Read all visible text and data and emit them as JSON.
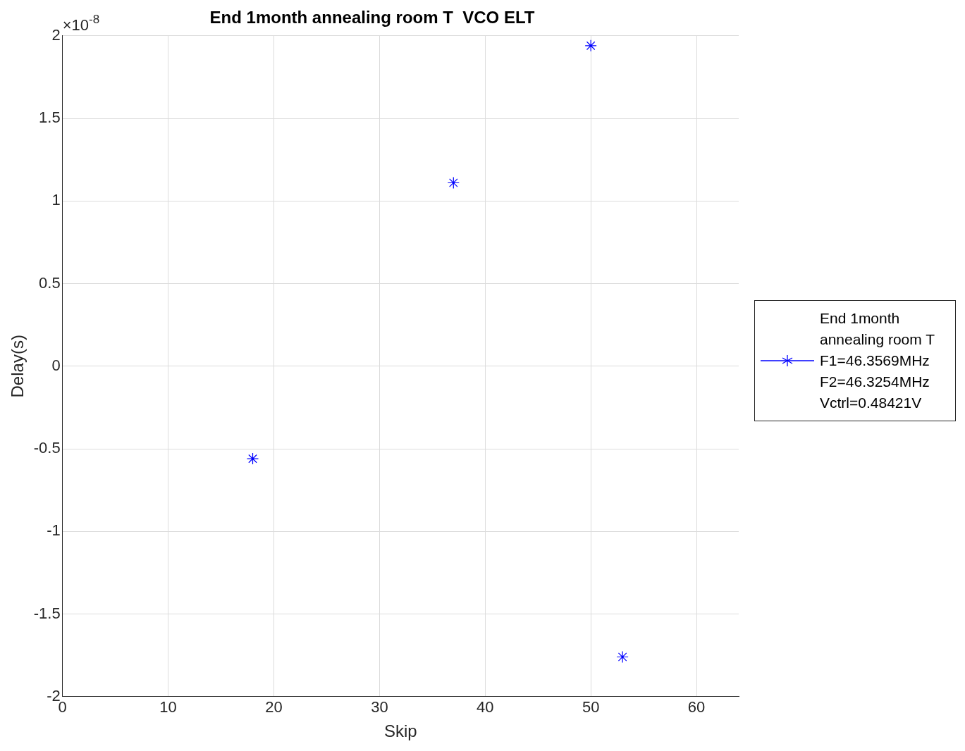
{
  "chart_data": {
    "type": "line",
    "title": "End 1month annealing room T  VCO ELT",
    "xlabel": "Skip",
    "ylabel": "Delay(s)",
    "annotations": [
      "×10$^{-8}$"
    ],
    "x": [
      18,
      19,
      37,
      38,
      50,
      51,
      53
    ],
    "series": [
      {
        "name": "End 1month\nannealing room T\nF1=46.3569MHz\nF2=46.3254MHz\nVctrl=0.48421V",
        "color": "#0000ff",
        "values": [
          -0.56,
          null,
          1.11,
          null,
          1.94,
          null,
          -1.76
        ]
      }
    ],
    "xlim": [
      0,
      64
    ],
    "xticks": [
      0,
      10,
      20,
      30,
      40,
      50,
      60
    ],
    "ylim": [
      -2,
      2
    ],
    "yticks": [
      -2,
      -1.5,
      -1,
      -0.5,
      0,
      0.5,
      1,
      1.5,
      2
    ],
    "grid": true,
    "legend": "right",
    "marker": "cross",
    "line_style": "solid"
  }
}
